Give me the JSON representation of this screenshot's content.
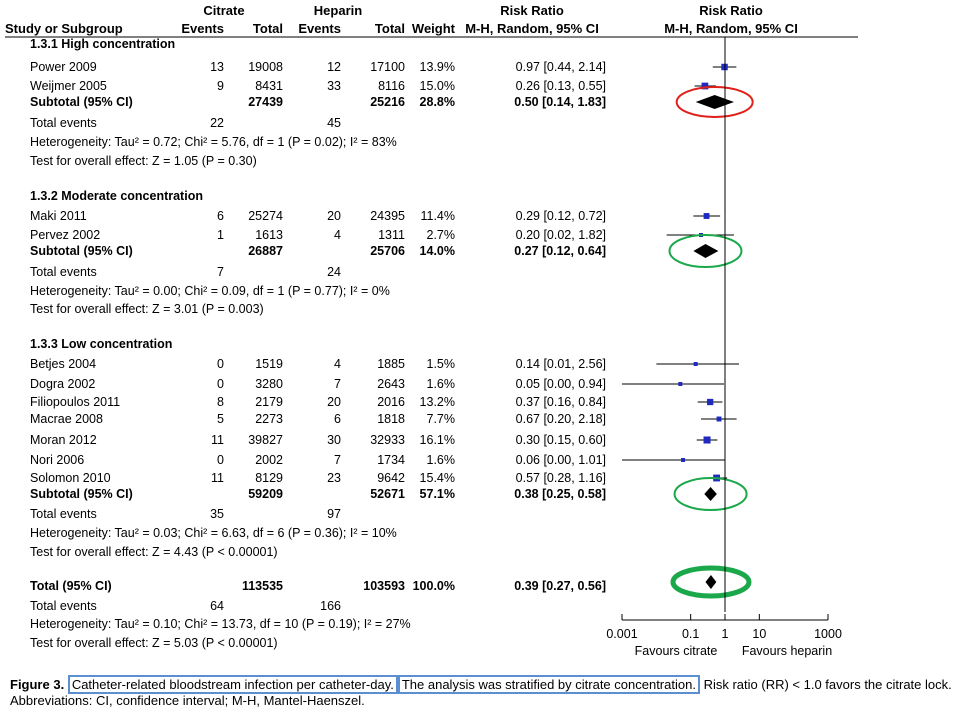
{
  "chart_data": {
    "type": "forest",
    "header": {
      "group1": "Citrate",
      "group2": "Heparin",
      "rr_col": "Risk Ratio",
      "rr_plot": "Risk Ratio",
      "study_col": "Study or Subgroup",
      "events1": "Events",
      "total1": "Total",
      "events2": "Events",
      "total2": "Total",
      "weight": "Weight",
      "rr_method": "M-H, Random, 95% CI",
      "plot_method": "M-H, Random, 95% CI"
    },
    "subgroups": [
      {
        "title": "1.3.1 High concentration",
        "studies": [
          {
            "name": "Power 2009",
            "e1": "13",
            "t1": "19008",
            "e2": "12",
            "t2": "17100",
            "weight": "13.9%",
            "ci_text": "0.97 [0.44, 2.14]",
            "rr": 0.97,
            "lo": 0.44,
            "hi": 2.14
          },
          {
            "name": "Weijmer 2005",
            "e1": "9",
            "t1": "8431",
            "e2": "33",
            "t2": "8116",
            "weight": "15.0%",
            "ci_text": "0.26 [0.13, 0.55]",
            "rr": 0.26,
            "lo": 0.13,
            "hi": 0.55
          }
        ],
        "subtotal": {
          "label": "Subtotal (95% CI)",
          "t1": "27439",
          "t2": "25216",
          "weight": "28.8%",
          "ci_text": "0.50 [0.14, 1.83]",
          "rr": 0.5,
          "lo": 0.14,
          "hi": 1.83
        },
        "events_label": "Total events",
        "events1": "22",
        "events2": "45",
        "heterogeneity": "Heterogeneity: Tau² = 0.72; Chi² = 5.76, df = 1 (P = 0.02); I² = 83%",
        "overall": "Test for overall effect: Z = 1.05 (P = 0.30)",
        "highlight_color": "#e0201a"
      },
      {
        "title": "1.3.2 Moderate concentration",
        "studies": [
          {
            "name": "Maki 2011",
            "e1": "6",
            "t1": "25274",
            "e2": "20",
            "t2": "24395",
            "weight": "11.4%",
            "ci_text": "0.29 [0.12, 0.72]",
            "rr": 0.29,
            "lo": 0.12,
            "hi": 0.72
          },
          {
            "name": "Pervez 2002",
            "e1": "1",
            "t1": "1613",
            "e2": "4",
            "t2": "1311",
            "weight": "2.7%",
            "ci_text": "0.20 [0.02, 1.82]",
            "rr": 0.2,
            "lo": 0.02,
            "hi": 1.82
          }
        ],
        "subtotal": {
          "label": "Subtotal (95% CI)",
          "t1": "26887",
          "t2": "25706",
          "weight": "14.0%",
          "ci_text": "0.27 [0.12, 0.64]",
          "rr": 0.27,
          "lo": 0.12,
          "hi": 0.64
        },
        "events_label": "Total events",
        "events1": "7",
        "events2": "24",
        "heterogeneity": "Heterogeneity: Tau² = 0.00; Chi² = 0.09, df = 1 (P = 0.77); I² = 0%",
        "overall": "Test for overall effect: Z = 3.01 (P = 0.003)",
        "highlight_color": "#1aa84a"
      },
      {
        "title": "1.3.3 Low concentration",
        "studies": [
          {
            "name": "Betjes 2004",
            "e1": "0",
            "t1": "1519",
            "e2": "4",
            "t2": "1885",
            "weight": "1.5%",
            "ci_text": "0.14 [0.01, 2.56]",
            "rr": 0.14,
            "lo": 0.01,
            "hi": 2.56
          },
          {
            "name": "Dogra 2002",
            "e1": "0",
            "t1": "3280",
            "e2": "7",
            "t2": "2643",
            "weight": "1.6%",
            "ci_text": "0.05 [0.00, 0.94]",
            "rr": 0.05,
            "lo": 0.0,
            "hi": 0.94
          },
          {
            "name": "Filiopoulos 2011",
            "e1": "8",
            "t1": "2179",
            "e2": "20",
            "t2": "2016",
            "weight": "13.2%",
            "ci_text": "0.37 [0.16, 0.84]",
            "rr": 0.37,
            "lo": 0.16,
            "hi": 0.84
          },
          {
            "name": "Macrae 2008",
            "e1": "5",
            "t1": "2273",
            "e2": "6",
            "t2": "1818",
            "weight": "7.7%",
            "ci_text": "0.67 [0.20, 2.18]",
            "rr": 0.67,
            "lo": 0.2,
            "hi": 2.18
          },
          {
            "name": "Moran 2012",
            "e1": "11",
            "t1": "39827",
            "e2": "30",
            "t2": "32933",
            "weight": "16.1%",
            "ci_text": "0.30 [0.15, 0.60]",
            "rr": 0.3,
            "lo": 0.15,
            "hi": 0.6
          },
          {
            "name": "Nori 2006",
            "e1": "0",
            "t1": "2002",
            "e2": "7",
            "t2": "1734",
            "weight": "1.6%",
            "ci_text": "0.06 [0.00, 1.01]",
            "rr": 0.06,
            "lo": 0.0,
            "hi": 1.01
          },
          {
            "name": "Solomon 2010",
            "e1": "11",
            "t1": "8129",
            "e2": "23",
            "t2": "9642",
            "weight": "15.4%",
            "ci_text": "0.57 [0.28, 1.16]",
            "rr": 0.57,
            "lo": 0.28,
            "hi": 1.16
          }
        ],
        "subtotal": {
          "label": "Subtotal (95% CI)",
          "t1": "59209",
          "t2": "52671",
          "weight": "57.1%",
          "ci_text": "0.38 [0.25, 0.58]",
          "rr": 0.38,
          "lo": 0.25,
          "hi": 0.58
        },
        "events_label": "Total events",
        "events1": "35",
        "events2": "97",
        "heterogeneity": "Heterogeneity: Tau² = 0.03; Chi² = 6.63, df = 6 (P = 0.36); I² = 10%",
        "overall": "Test for overall effect: Z = 4.43 (P < 0.00001)",
        "highlight_color": "#1aa84a"
      }
    ],
    "total": {
      "label": "Total (95% CI)",
      "t1": "113535",
      "t2": "103593",
      "weight": "100.0%",
      "ci_text": "0.39 [0.27, 0.56]",
      "rr": 0.39,
      "lo": 0.27,
      "hi": 0.56,
      "events_label": "Total events",
      "events1": "64",
      "events2": "166",
      "heterogeneity": "Heterogeneity: Tau² = 0.10; Chi² = 13.73, df = 10 (P = 0.19); I² = 27%",
      "overall": "Test for overall effect: Z = 5.03 (P < 0.00001)",
      "highlight_color": "#1aa84a"
    },
    "axis": {
      "scale": "log",
      "range": [
        0.001,
        1000
      ],
      "ticks": [
        0.001,
        0.1,
        1,
        10,
        1000
      ],
      "tick_labels": [
        "0.001",
        "0.1",
        "1",
        "10",
        "1000"
      ],
      "left_label": "Favours citrate",
      "right_label": "Favours heparin"
    },
    "square_color": "#1f2bbf"
  },
  "caption": {
    "label": "Figure 3.",
    "part1": "Catheter-related bloodstream infection per catheter-day.",
    "part2": "The analysis was stratified by citrate concentration.",
    "rest": "Risk ratio (RR) < 1.0 favors the citrate lock. Abbreviations: CI, confidence interval; M-H, Mantel-Haenszel.",
    "highlight_color": "#5b8fd0"
  }
}
